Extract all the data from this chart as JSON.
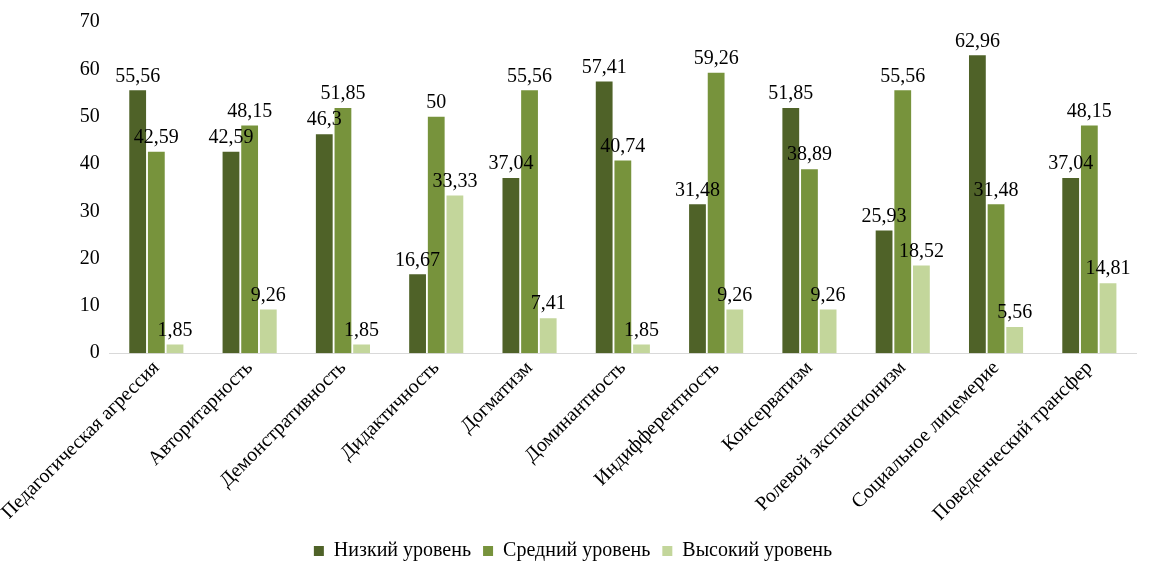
{
  "chart_data": {
    "type": "bar",
    "categories": [
      "Педагогическая агрессия",
      "Авторитарность",
      "Демонстративность",
      "Дидактичность",
      "Догматизм",
      "Доминантность",
      "Индифферентность",
      "Консерватизм",
      "Ролевой экспансионизм",
      "Социальное лицемерие",
      "Поведенческий трансфер"
    ],
    "series": [
      {
        "name": "Низкий уровень",
        "color": "#4f6228",
        "values": [
          55.56,
          42.59,
          46.3,
          16.67,
          37.04,
          57.41,
          31.48,
          51.85,
          25.93,
          62.96,
          37.04
        ],
        "value_labels": [
          "55,56",
          "42,59",
          "46,3",
          "16,67",
          "37,04",
          "57,41",
          "31,48",
          "51,85",
          "25,93",
          "62,96",
          "37,04"
        ]
      },
      {
        "name": "Средний уровень",
        "color": "#77933c",
        "values": [
          42.59,
          48.15,
          51.85,
          50,
          55.56,
          40.74,
          59.26,
          38.89,
          55.56,
          31.48,
          48.15
        ],
        "value_labels": [
          "42,59",
          "48,15",
          "51,85",
          "50",
          "55,56",
          "40,74",
          "59,26",
          "38,89",
          "55,56",
          "31,48",
          "48,15"
        ]
      },
      {
        "name": "Высокий уровень",
        "color": "#c3d69b",
        "values": [
          1.85,
          9.26,
          1.85,
          33.33,
          7.41,
          1.85,
          9.26,
          9.26,
          18.52,
          5.56,
          14.81
        ],
        "value_labels": [
          "1,85",
          "9,26",
          "1,85",
          "33,33",
          "7,41",
          "1,85",
          "9,26",
          "9,26",
          "18,52",
          "5,56",
          "14,81"
        ]
      }
    ],
    "ylim": [
      0,
      70
    ],
    "yticks": [
      0,
      10,
      20,
      30,
      40,
      50,
      60,
      70
    ],
    "grid": false,
    "legend": "bottom"
  }
}
